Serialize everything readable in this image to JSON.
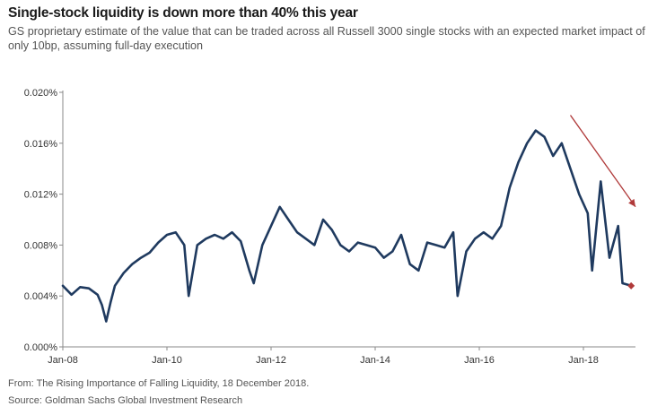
{
  "title": "Single-stock liquidity is down more than 40% this year",
  "subtitle": "GS proprietary estimate of the value that can be traded across all Russell 3000 single stocks with an expected market impact of only 10bp, assuming full-day execution",
  "footnotes": {
    "from": "From: The Rising Importance of Falling Liquidity, 18 December 2018.",
    "source": "Source: Goldman Sachs Global Investment Research"
  },
  "colors": {
    "line": "#1f3a5f",
    "arrow": "#b03a3a",
    "axis": "#888888"
  },
  "chart_data": {
    "type": "line",
    "title": "Single-stock liquidity is down more than 40% this year",
    "xlabel": "",
    "ylabel": "",
    "ylim": [
      0.0,
      0.02
    ],
    "y_ticks": [
      "0.000%",
      "0.004%",
      "0.008%",
      "0.012%",
      "0.016%",
      "0.020%"
    ],
    "x_ticks": [
      "Jan-08",
      "Jan-10",
      "Jan-12",
      "Jan-14",
      "Jan-16",
      "Jan-18"
    ],
    "x_range": [
      "2008-01",
      "2019-01"
    ],
    "grid": false,
    "series": [
      {
        "name": "",
        "x": [
          "2008-01",
          "2008-03",
          "2008-05",
          "2008-07",
          "2008-09",
          "2008-10",
          "2008-11",
          "2008-12",
          "2009-01",
          "2009-03",
          "2009-05",
          "2009-07",
          "2009-09",
          "2009-11",
          "2010-01",
          "2010-03",
          "2010-05",
          "2010-06",
          "2010-08",
          "2010-10",
          "2010-12",
          "2011-02",
          "2011-04",
          "2011-06",
          "2011-08",
          "2011-09",
          "2011-11",
          "2012-01",
          "2012-03",
          "2012-05",
          "2012-07",
          "2012-09",
          "2012-11",
          "2013-01",
          "2013-03",
          "2013-05",
          "2013-07",
          "2013-09",
          "2013-11",
          "2014-01",
          "2014-03",
          "2014-05",
          "2014-07",
          "2014-09",
          "2014-11",
          "2015-01",
          "2015-03",
          "2015-05",
          "2015-07",
          "2015-08",
          "2015-10",
          "2015-12",
          "2016-02",
          "2016-04",
          "2016-06",
          "2016-08",
          "2016-10",
          "2016-12",
          "2017-02",
          "2017-04",
          "2017-06",
          "2017-08",
          "2017-10",
          "2017-12",
          "2018-02",
          "2018-03",
          "2018-05",
          "2018-07",
          "2018-09",
          "2018-10",
          "2018-12"
        ],
        "values": [
          0.0048,
          0.0041,
          0.0047,
          0.0046,
          0.0041,
          0.0033,
          0.002,
          0.0035,
          0.0048,
          0.0058,
          0.0065,
          0.007,
          0.0074,
          0.0082,
          0.0088,
          0.009,
          0.008,
          0.004,
          0.008,
          0.0085,
          0.0088,
          0.0085,
          0.009,
          0.0083,
          0.006,
          0.005,
          0.008,
          0.0095,
          0.011,
          0.01,
          0.009,
          0.0085,
          0.008,
          0.01,
          0.0092,
          0.008,
          0.0075,
          0.0082,
          0.008,
          0.0078,
          0.007,
          0.0075,
          0.0088,
          0.0065,
          0.006,
          0.0082,
          0.008,
          0.0078,
          0.009,
          0.004,
          0.0075,
          0.0085,
          0.009,
          0.0085,
          0.0095,
          0.0125,
          0.0145,
          0.016,
          0.017,
          0.0165,
          0.015,
          0.016,
          0.014,
          0.012,
          0.0105,
          0.006,
          0.013,
          0.007,
          0.0095,
          0.005,
          0.0048
        ]
      }
    ],
    "annotations": [
      {
        "type": "arrow",
        "from": [
          "2017-10",
          0.0182
        ],
        "to": [
          "2019-01",
          0.011
        ]
      }
    ]
  }
}
